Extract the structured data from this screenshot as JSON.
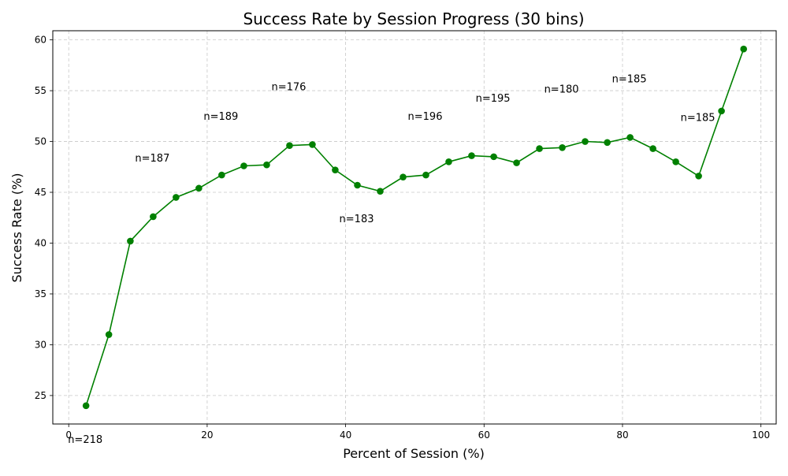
{
  "chart_data": {
    "type": "line",
    "title": "Success Rate by Session Progress (30 bins)",
    "xlabel": "Percent of Session (%)",
    "ylabel": "Success Rate (%)",
    "xlim": [
      -2.3,
      102.2
    ],
    "ylim": [
      22.2,
      60.9
    ],
    "xticks": [
      0,
      20,
      40,
      60,
      80,
      100
    ],
    "yticks": [
      25,
      30,
      35,
      40,
      45,
      50,
      55,
      60
    ],
    "grid": true,
    "colors": {
      "line": "#008000",
      "marker": "#008000",
      "grid": "#c8c8c8",
      "axes": "#000000"
    },
    "series": [
      {
        "x": [
          2.5,
          5.8,
          8.9,
          12.2,
          15.5,
          18.8,
          22.1,
          25.3,
          28.6,
          31.9,
          35.2,
          38.5,
          41.7,
          45.0,
          48.3,
          51.6,
          54.9,
          58.2,
          61.4,
          64.7,
          68.0,
          71.3,
          74.6,
          77.8,
          81.1,
          84.4,
          87.7,
          91.0,
          94.3,
          97.5
        ],
        "y": [
          24.0,
          31.0,
          40.2,
          42.6,
          44.5,
          45.4,
          46.7,
          47.6,
          47.7,
          49.6,
          49.7,
          47.2,
          45.7,
          45.1,
          46.5,
          46.7,
          48.0,
          48.6,
          48.5,
          47.9,
          49.3,
          49.4,
          50.0,
          49.9,
          50.4,
          49.3,
          48.0,
          46.6,
          53.0,
          59.1
        ]
      }
    ],
    "annotations": [
      {
        "text": "n=218",
        "x": 2.5,
        "y": 24.0,
        "offset": "below"
      },
      {
        "text": "n=187",
        "x": 12.2,
        "y": 42.6,
        "offset": "above"
      },
      {
        "text": "n=189",
        "x": 22.1,
        "y": 46.7,
        "offset": "above"
      },
      {
        "text": "n=176",
        "x": 31.9,
        "y": 49.6,
        "offset": "above"
      },
      {
        "text": "n=183",
        "x": 41.7,
        "y": 45.7,
        "offset": "below"
      },
      {
        "text": "n=196",
        "x": 51.6,
        "y": 46.7,
        "offset": "above"
      },
      {
        "text": "n=195",
        "x": 61.4,
        "y": 48.5,
        "offset": "above"
      },
      {
        "text": "n=180",
        "x": 71.3,
        "y": 49.4,
        "offset": "above"
      },
      {
        "text": "n=185",
        "x": 81.1,
        "y": 50.4,
        "offset": "above"
      },
      {
        "text": "n=185",
        "x": 91.0,
        "y": 46.6,
        "offset": "above"
      }
    ]
  }
}
